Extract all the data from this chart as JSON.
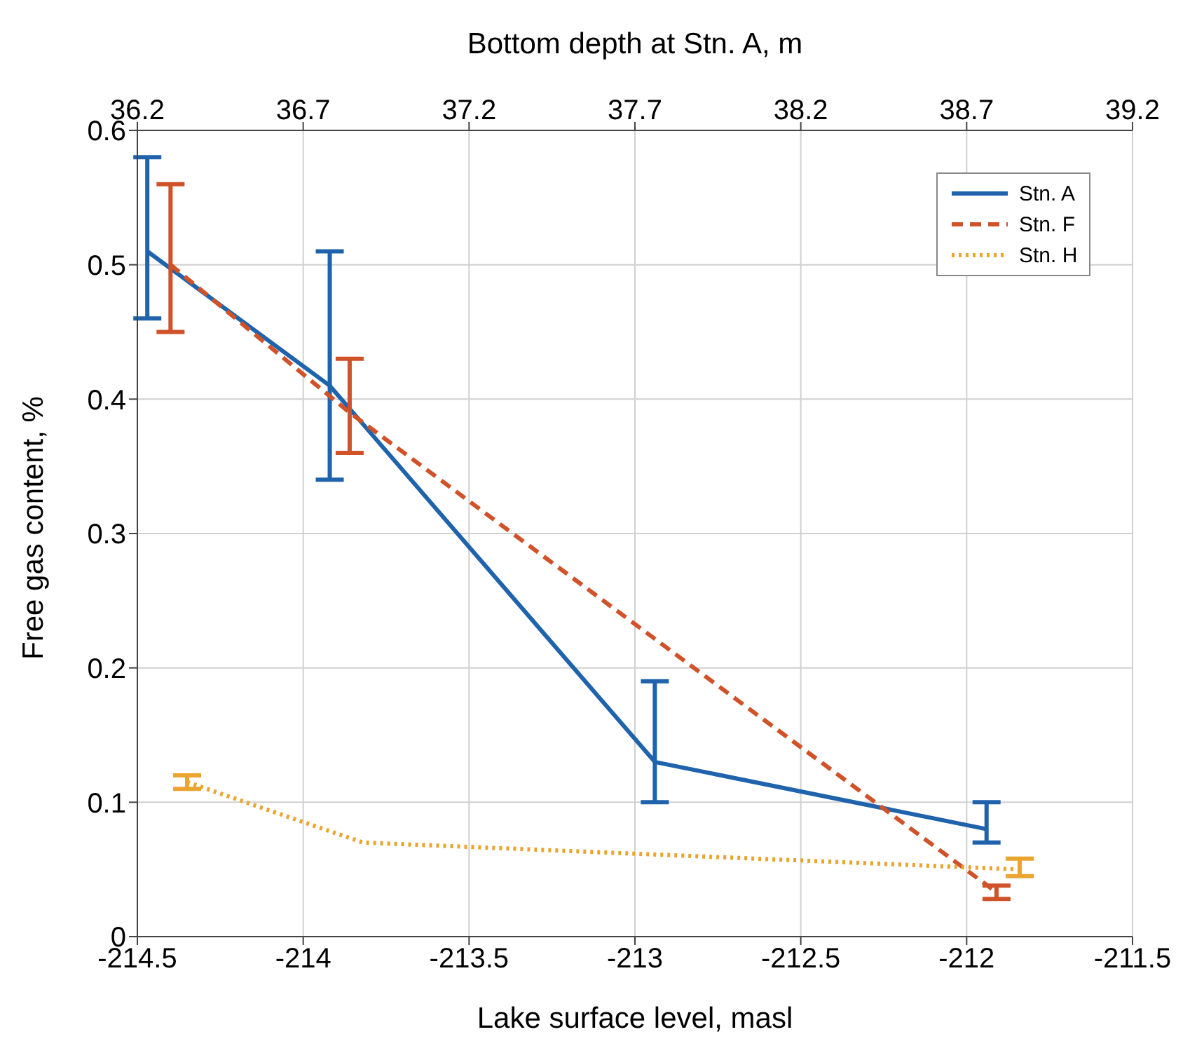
{
  "chart_data": {
    "type": "line",
    "xlabel": "Lake surface level, masl",
    "ylabel": "Free gas content, %",
    "x2label": "Bottom depth at Stn. A, m",
    "xlim": [
      -214.5,
      -211.5
    ],
    "xticks": [
      -214.5,
      -214,
      -213.5,
      -213,
      -212.5,
      -212,
      -211.5
    ],
    "x2lim": [
      36.2,
      39.2
    ],
    "x2ticks": [
      36.2,
      36.7,
      37.2,
      37.7,
      38.2,
      38.7,
      39.2
    ],
    "ylim": [
      0,
      0.6
    ],
    "yticks": [
      0,
      0.1,
      0.2,
      0.3,
      0.4,
      0.5,
      0.6
    ],
    "grid": true,
    "legend": "top right",
    "marker": "none",
    "series": [
      {
        "name": "Stn. A",
        "color": "#1f63ac",
        "line_style": "solid",
        "x": [
          -214.47,
          -213.92,
          -212.94,
          -211.94
        ],
        "values": [
          0.51,
          0.41,
          0.13,
          0.08
        ],
        "errors": [
          [
            0.46,
            0.58
          ],
          [
            0.34,
            0.51
          ],
          [
            0.1,
            0.19
          ],
          [
            0.07,
            0.1
          ]
        ]
      },
      {
        "name": "Stn. F",
        "color": "#cf5229",
        "line_style": "dashed",
        "x": [
          -214.4,
          -213.86,
          -211.91
        ],
        "values": [
          0.5,
          0.39,
          0.033
        ],
        "errors": [
          [
            0.45,
            0.56
          ],
          [
            0.36,
            0.43
          ],
          [
            0.028,
            0.038
          ]
        ]
      },
      {
        "name": "Stn. H",
        "color": "#e9a530",
        "line_style": "dotted",
        "x": [
          -214.35,
          -213.82,
          -211.84
        ],
        "values": [
          0.115,
          0.07,
          0.05
        ],
        "errors": [
          [
            0.11,
            0.12
          ],
          null,
          [
            0.045,
            0.058
          ]
        ]
      }
    ]
  }
}
